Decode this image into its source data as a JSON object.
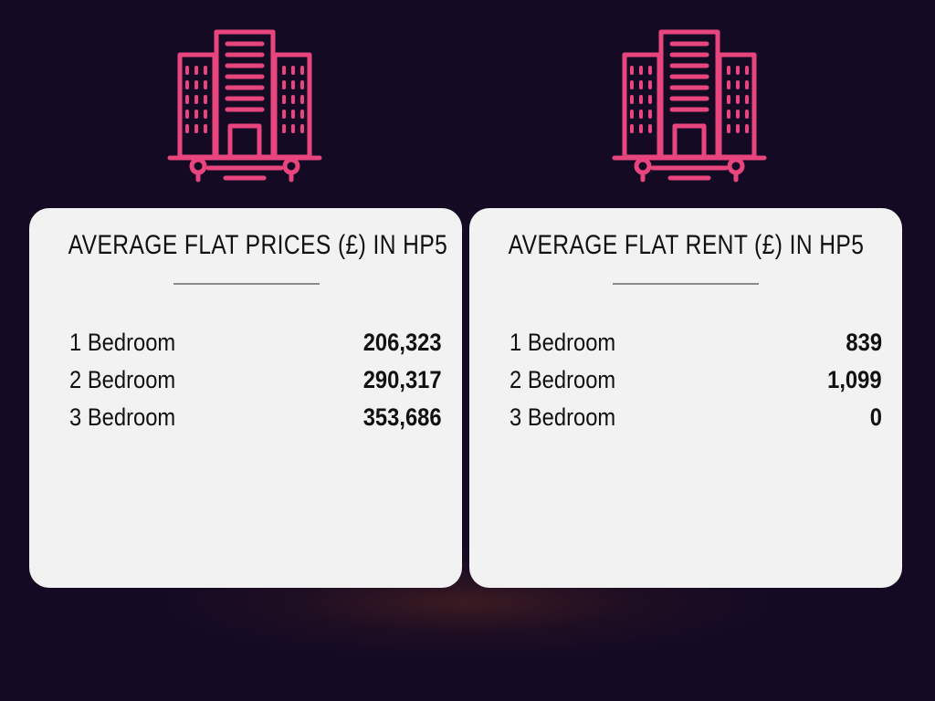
{
  "colors": {
    "background": "#140a24",
    "accent": "#e8457f",
    "card": "#f2f2f2",
    "text": "#111111"
  },
  "icons": {
    "left": "building-icon",
    "right": "building-icon"
  },
  "prices_card": {
    "title": "AVERAGE FLAT PRICES (£) IN HP5",
    "rows": [
      {
        "label": "1 Bedroom",
        "value": "206,323"
      },
      {
        "label": "2 Bedroom",
        "value": "290,317"
      },
      {
        "label": "3 Bedroom",
        "value": "353,686"
      }
    ]
  },
  "rent_card": {
    "title": "AVERAGE FLAT RENT (£) IN HP5",
    "rows": [
      {
        "label": "1 Bedroom",
        "value": "839"
      },
      {
        "label": "2 Bedroom",
        "value": "1,099"
      },
      {
        "label": "3 Bedroom",
        "value": "0"
      }
    ]
  }
}
